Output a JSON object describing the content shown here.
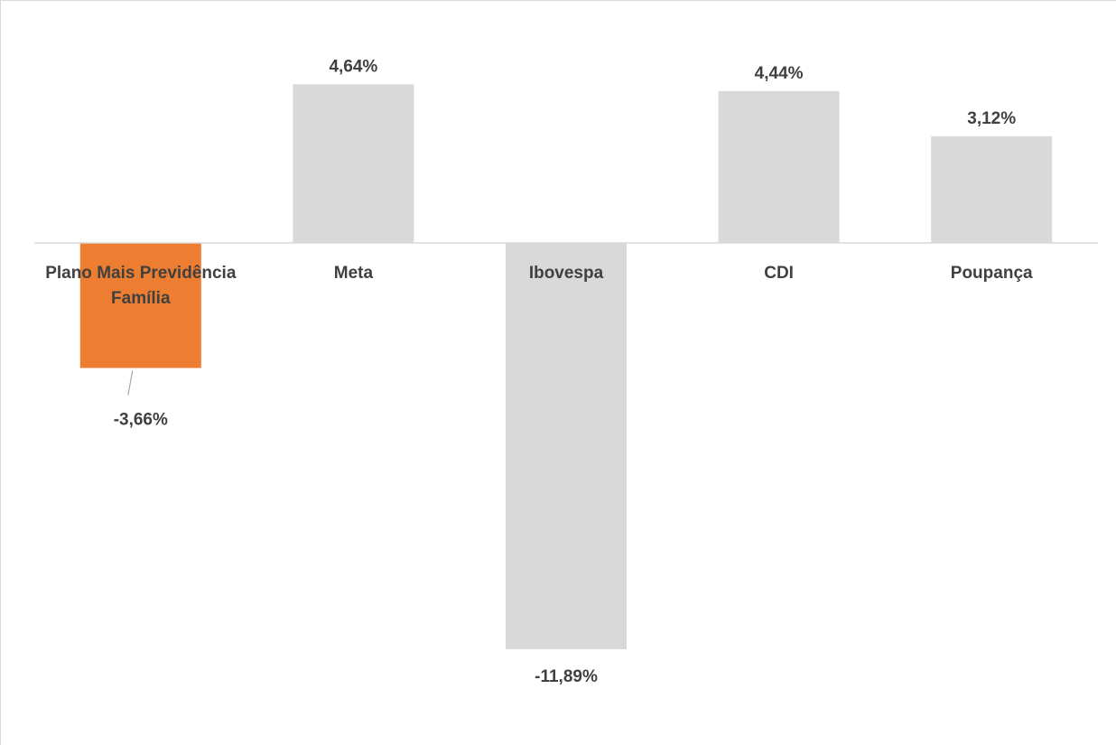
{
  "chart_data": {
    "type": "bar",
    "title": "",
    "xlabel": "",
    "ylabel": "",
    "categories": [
      "Plano Mais Previdência Família",
      "Meta",
      "Ibovespa",
      "CDI",
      "Poupança"
    ],
    "category_lines": [
      [
        "Plano Mais Previdência",
        "Família"
      ],
      [
        "Meta"
      ],
      [
        "Ibovespa"
      ],
      [
        "CDI"
      ],
      [
        "Poupança"
      ]
    ],
    "values": [
      -3.66,
      4.64,
      -11.89,
      4.44,
      3.12
    ],
    "value_labels": [
      "-3,66%",
      "4,64%",
      "-11,89%",
      "4,44%",
      "3,12%"
    ],
    "unit": "%",
    "ylim": [
      -11.89,
      4.64
    ],
    "grid": false,
    "legend": "none",
    "colors": {
      "highlight": "#ED7D31",
      "default": "#D9D9D9",
      "axis": "#D9D9D9",
      "label": "#404040",
      "frame": "#D9D9D9"
    },
    "highlight_index": 0
  }
}
